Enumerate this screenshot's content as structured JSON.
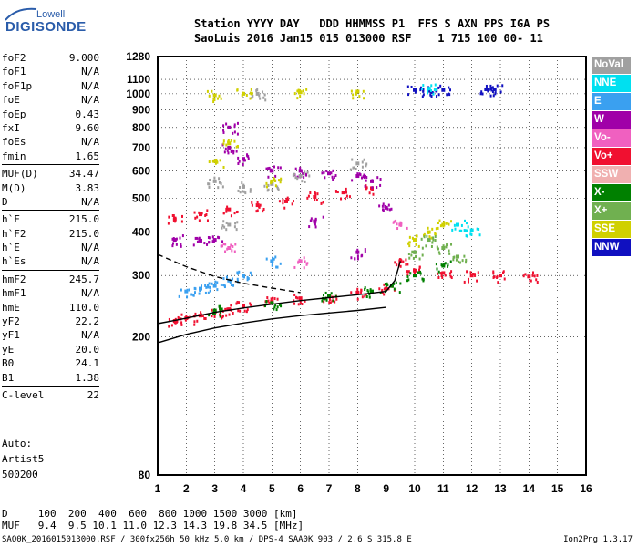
{
  "logo": {
    "top": "Lowell",
    "main": "DIGISONDE"
  },
  "header": {
    "line1": "Station YYYY DAY   DDD HHMMSS P1  FFS S AXN PPS IGA PS",
    "line2": "SaoLuis 2016 Jan15 015 013000 RSF    1 715 100 00- 11"
  },
  "params_groups": [
    [
      {
        "name": "foF2",
        "value": "9.000"
      },
      {
        "name": "foF1",
        "value": "N/A"
      },
      {
        "name": "foF1p",
        "value": "N/A"
      },
      {
        "name": "foE",
        "value": "N/A"
      },
      {
        "name": "foEp",
        "value": "0.43"
      },
      {
        "name": "fxI",
        "value": "9.60"
      },
      {
        "name": "foEs",
        "value": "N/A"
      },
      {
        "name": "fmin",
        "value": "1.65"
      }
    ],
    [
      {
        "name": "MUF(D)",
        "value": "34.47"
      },
      {
        "name": "M(D)",
        "value": "3.83"
      },
      {
        "name": "D",
        "value": "N/A"
      }
    ],
    [
      {
        "name": "h`F",
        "value": "215.0"
      },
      {
        "name": "h`F2",
        "value": "215.0"
      },
      {
        "name": "h`E",
        "value": "N/A"
      },
      {
        "name": "h`Es",
        "value": "N/A"
      }
    ],
    [
      {
        "name": "hmF2",
        "value": "245.7"
      },
      {
        "name": "hmF1",
        "value": "N/A"
      },
      {
        "name": "hmE",
        "value": "110.0"
      },
      {
        "name": "yF2",
        "value": "22.2"
      },
      {
        "name": "yF1",
        "value": "N/A"
      },
      {
        "name": "yE",
        "value": "20.0"
      },
      {
        "name": "B0",
        "value": "24.1"
      },
      {
        "name": "B1",
        "value": "1.38"
      }
    ],
    [
      {
        "name": "C-level",
        "value": "22"
      }
    ]
  ],
  "auto": {
    "line1": "Auto:",
    "line2": "Artist5",
    "line3": "500200"
  },
  "legend": [
    {
      "label": "NoVal",
      "color": "#a0a0a0"
    },
    {
      "label": "NNE",
      "color": "#00e0f0"
    },
    {
      "label": "E",
      "color": "#3aa0f0"
    },
    {
      "label": "W",
      "color": "#a000a8"
    },
    {
      "label": "Vo-",
      "color": "#f060c0"
    },
    {
      "label": "Vo+",
      "color": "#f01030"
    },
    {
      "label": "SSW",
      "color": "#f0b0b0"
    },
    {
      "label": "X-",
      "color": "#008000"
    },
    {
      "label": "X+",
      "color": "#70b050"
    },
    {
      "label": "SSE",
      "color": "#d0d000"
    },
    {
      "label": "NNW",
      "color": "#1010c0"
    }
  ],
  "footer": {
    "d_row": "D     100  200  400  600  800 1000 1500 3000 [km]",
    "muf_row": "MUF   9.4  9.5 10.1 11.0 12.3 14.3 19.8 34.5 [MHz]",
    "file_line": "SAO0K_2016015013000.RSF / 300fx256h 50 kHz 5.0 km / DPS-4 SAA0K 903 / 2.6 S 315.8 E",
    "version": "Ion2Png 1.3.17"
  },
  "chart_data": {
    "type": "scatter",
    "title": "",
    "xlabel": "",
    "ylabel": "",
    "xlim": [
      1,
      16
    ],
    "ylim": [
      80,
      1280
    ],
    "yscale": "log",
    "xticks": [
      1,
      2,
      3,
      4,
      5,
      6,
      7,
      8,
      9,
      10,
      11,
      12,
      13,
      14,
      15,
      16
    ],
    "yticks": [
      80,
      200,
      300,
      400,
      500,
      600,
      700,
      800,
      900,
      1000,
      1100,
      1280
    ],
    "grid": true,
    "legend_position": "right",
    "series": [
      {
        "name": "Vo+",
        "color": "#f01030",
        "points": [
          [
            1.6,
            222
          ],
          [
            2.0,
            226
          ],
          [
            2.5,
            230
          ],
          [
            3.0,
            236
          ],
          [
            3.5,
            240
          ],
          [
            4.0,
            245
          ],
          [
            5.0,
            252
          ],
          [
            6.0,
            258
          ],
          [
            7.0,
            262
          ],
          [
            8.0,
            268
          ],
          [
            9.0,
            275
          ],
          [
            1.6,
            435
          ],
          [
            2.5,
            450
          ],
          [
            3.5,
            465
          ],
          [
            4.5,
            478
          ],
          [
            5.5,
            490
          ],
          [
            6.5,
            505
          ],
          [
            7.5,
            520
          ],
          [
            8.5,
            535
          ],
          [
            9.5,
            330
          ],
          [
            10.0,
            310
          ],
          [
            11.0,
            305
          ],
          [
            12.0,
            300
          ],
          [
            13.0,
            300
          ],
          [
            14.0,
            298
          ]
        ]
      },
      {
        "name": "W",
        "color": "#a000a8",
        "points": [
          [
            1.6,
            380
          ],
          [
            2.5,
            378
          ],
          [
            3.0,
            380
          ],
          [
            3.5,
            700
          ],
          [
            3.5,
            800
          ],
          [
            4.0,
            650
          ],
          [
            5.0,
            600
          ],
          [
            6.0,
            600
          ],
          [
            7.0,
            590
          ],
          [
            8.0,
            580
          ],
          [
            8.5,
            560
          ],
          [
            9.0,
            470
          ],
          [
            8.0,
            350
          ],
          [
            6.5,
            430
          ]
        ]
      },
      {
        "name": "NoVal",
        "color": "#a0a0a0",
        "points": [
          [
            3.0,
            560
          ],
          [
            4.0,
            540
          ],
          [
            5.0,
            550
          ],
          [
            6.0,
            580
          ],
          [
            8.0,
            630
          ],
          [
            4.5,
            1000
          ],
          [
            3.5,
            420
          ]
        ]
      },
      {
        "name": "E",
        "color": "#3aa0f0",
        "points": [
          [
            2.0,
            270
          ],
          [
            2.5,
            275
          ],
          [
            3.0,
            280
          ],
          [
            3.5,
            290
          ],
          [
            4.0,
            300
          ],
          [
            5.0,
            330
          ]
        ]
      },
      {
        "name": "X-",
        "color": "#008000",
        "points": [
          [
            3.0,
            238
          ],
          [
            5.0,
            250
          ],
          [
            7.0,
            262
          ],
          [
            8.5,
            270
          ],
          [
            9.2,
            280
          ],
          [
            10.0,
            300
          ],
          [
            11.0,
            320
          ]
        ]
      },
      {
        "name": "SSE",
        "color": "#d0d000",
        "points": [
          [
            3.0,
            990
          ],
          [
            4.0,
            1000
          ],
          [
            6.0,
            1010
          ],
          [
            8.0,
            1015
          ],
          [
            3.5,
            720
          ],
          [
            3.0,
            640
          ],
          [
            5.0,
            560
          ],
          [
            10.0,
            380
          ],
          [
            10.5,
            400
          ],
          [
            11.0,
            420
          ]
        ]
      },
      {
        "name": "NNW",
        "color": "#1010c0",
        "points": [
          [
            10.0,
            1025
          ],
          [
            10.5,
            1020
          ],
          [
            11.0,
            1025
          ],
          [
            12.5,
            1030
          ],
          [
            12.8,
            1030
          ]
        ]
      },
      {
        "name": "NNE",
        "color": "#00e0f0",
        "points": [
          [
            10.5,
            1035
          ],
          [
            11.5,
            420
          ],
          [
            12.0,
            405
          ]
        ]
      },
      {
        "name": "X+",
        "color": "#70b050",
        "points": [
          [
            10.0,
            350
          ],
          [
            10.5,
            380
          ],
          [
            11.0,
            360
          ],
          [
            11.5,
            340
          ]
        ]
      },
      {
        "name": "Vo-",
        "color": "#f060c0",
        "points": [
          [
            3.5,
            360
          ],
          [
            6.0,
            330
          ],
          [
            9.5,
            420
          ]
        ]
      }
    ]
  }
}
